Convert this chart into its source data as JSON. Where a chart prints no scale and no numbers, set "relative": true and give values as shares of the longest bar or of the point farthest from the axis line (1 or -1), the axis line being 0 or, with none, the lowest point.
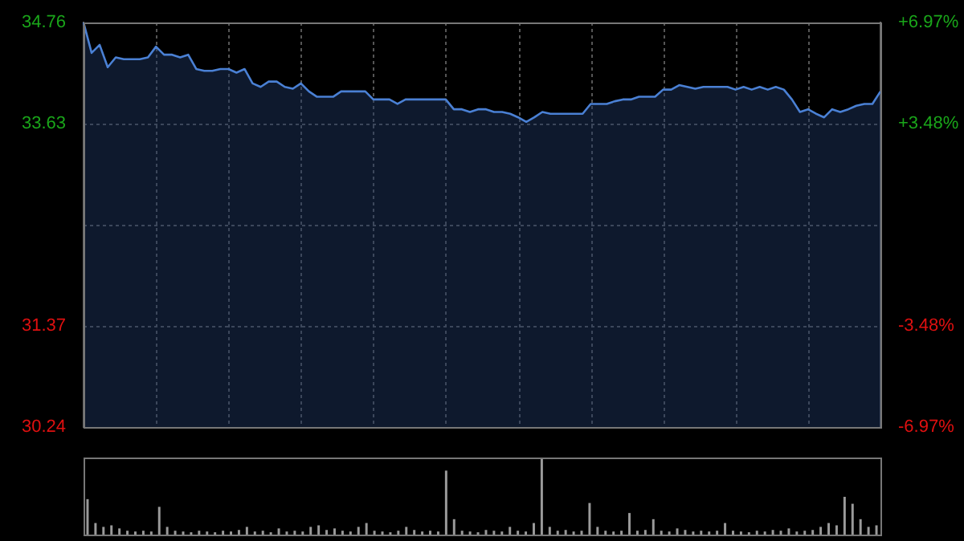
{
  "chart_data": [
    {
      "type": "area",
      "color": "#4a80d4",
      "categories": [
        null,
        null,
        null,
        null,
        null,
        null,
        null,
        null,
        null,
        null,
        null,
        null,
        null,
        null,
        null,
        null,
        null,
        null,
        null,
        null,
        null,
        null,
        null,
        null,
        null,
        null,
        null,
        null,
        null,
        null,
        null,
        null,
        null,
        null,
        null,
        null,
        null,
        null,
        null,
        null,
        null,
        null,
        null,
        null,
        null,
        null,
        null,
        null,
        null,
        null,
        null,
        null,
        null,
        null,
        null,
        null,
        null,
        null,
        null,
        null,
        null,
        null,
        null,
        null,
        null,
        null,
        null,
        null,
        null,
        null,
        null,
        null,
        null,
        null,
        null,
        null,
        null,
        null,
        null,
        null,
        null,
        null,
        null,
        null,
        null,
        null,
        null,
        null,
        null,
        null,
        null,
        null,
        null,
        null,
        null,
        null,
        null,
        null,
        null,
        null
      ],
      "values": [
        34.76,
        34.42,
        34.51,
        34.26,
        34.37,
        34.35,
        34.35,
        34.35,
        34.37,
        34.49,
        34.4,
        34.4,
        34.37,
        34.4,
        34.24,
        34.22,
        34.22,
        34.24,
        34.24,
        34.2,
        34.24,
        34.08,
        34.04,
        34.1,
        34.1,
        34.04,
        34.02,
        34.08,
        33.99,
        33.93,
        33.93,
        33.93,
        33.99,
        33.99,
        33.99,
        33.99,
        33.9,
        33.9,
        33.9,
        33.85,
        33.9,
        33.9,
        33.9,
        33.9,
        33.9,
        33.9,
        33.79,
        33.79,
        33.76,
        33.79,
        33.79,
        33.76,
        33.76,
        33.74,
        33.7,
        33.65,
        33.7,
        33.76,
        33.74,
        33.74,
        33.74,
        33.74,
        33.74,
        33.85,
        33.85,
        33.85,
        33.88,
        33.9,
        33.9,
        33.93,
        33.93,
        33.93,
        34.01,
        34.01,
        34.06,
        34.04,
        34.02,
        34.04,
        34.04,
        34.04,
        34.04,
        34.01,
        34.04,
        34.01,
        34.04,
        34.01,
        34.04,
        34.01,
        33.9,
        33.76,
        33.79,
        33.74,
        33.7,
        33.79,
        33.76,
        33.79,
        33.83,
        33.85,
        33.85,
        33.99
      ],
      "ylim": [
        30.24,
        34.76
      ],
      "yticks": [
        30.24,
        31.37,
        {
          "value": 32.5,
          "label": null
        },
        33.63,
        34.76
      ],
      "y2lim": [
        -6.97,
        6.97
      ],
      "y2ticks": [
        {
          "value": -6.97,
          "label": "-6.97%"
        },
        {
          "value": -3.48,
          "label": "-3.48%"
        },
        {
          "value": 3.48,
          "label": "+3.48%"
        },
        {
          "value": 6.97,
          "label": "+6.97%"
        }
      ],
      "grid": true,
      "legend": false
    },
    {
      "type": "bar",
      "relative": true,
      "color": "#9a9a9a",
      "categories": [
        null,
        null,
        null,
        null,
        null,
        null,
        null,
        null,
        null,
        null,
        null,
        null,
        null,
        null,
        null,
        null,
        null,
        null,
        null,
        null,
        null,
        null,
        null,
        null,
        null,
        null,
        null,
        null,
        null,
        null,
        null,
        null,
        null,
        null,
        null,
        null,
        null,
        null,
        null,
        null,
        null,
        null,
        null,
        null,
        null,
        null,
        null,
        null,
        null,
        null,
        null,
        null,
        null,
        null,
        null,
        null,
        null,
        null,
        null,
        null,
        null,
        null,
        null,
        null,
        null,
        null,
        null,
        null,
        null,
        null,
        null,
        null,
        null,
        null,
        null,
        null,
        null,
        null,
        null,
        null,
        null,
        null,
        null,
        null,
        null,
        null,
        null,
        null,
        null,
        null,
        null,
        null,
        null,
        null,
        null,
        null,
        null,
        null,
        null,
        null
      ],
      "values": [
        0.46,
        0.15,
        0.1,
        0.12,
        0.08,
        0.05,
        0.04,
        0.05,
        0.04,
        0.36,
        0.1,
        0.05,
        0.04,
        0.03,
        0.05,
        0.04,
        0.03,
        0.05,
        0.04,
        0.06,
        0.1,
        0.04,
        0.05,
        0.03,
        0.08,
        0.04,
        0.05,
        0.04,
        0.1,
        0.12,
        0.06,
        0.08,
        0.05,
        0.04,
        0.1,
        0.15,
        0.05,
        0.04,
        0.03,
        0.05,
        0.1,
        0.06,
        0.04,
        0.05,
        0.04,
        0.83,
        0.2,
        0.05,
        0.04,
        0.03,
        0.06,
        0.05,
        0.04,
        0.1,
        0.05,
        0.04,
        0.15,
        1,
        0.1,
        0.05,
        0.06,
        0.04,
        0.05,
        0.41,
        0.1,
        0.05,
        0.04,
        0.05,
        0.28,
        0.05,
        0.06,
        0.2,
        0.05,
        0.04,
        0.08,
        0.06,
        0.04,
        0.05,
        0.04,
        0.05,
        0.15,
        0.05,
        0.04,
        0.03,
        0.05,
        0.04,
        0.06,
        0.05,
        0.08,
        0.04,
        0.05,
        0.06,
        0.1,
        0.15,
        0.12,
        0.49,
        0.4,
        0.2,
        0.1,
        0.12
      ],
      "grid": false,
      "legend": false
    }
  ]
}
